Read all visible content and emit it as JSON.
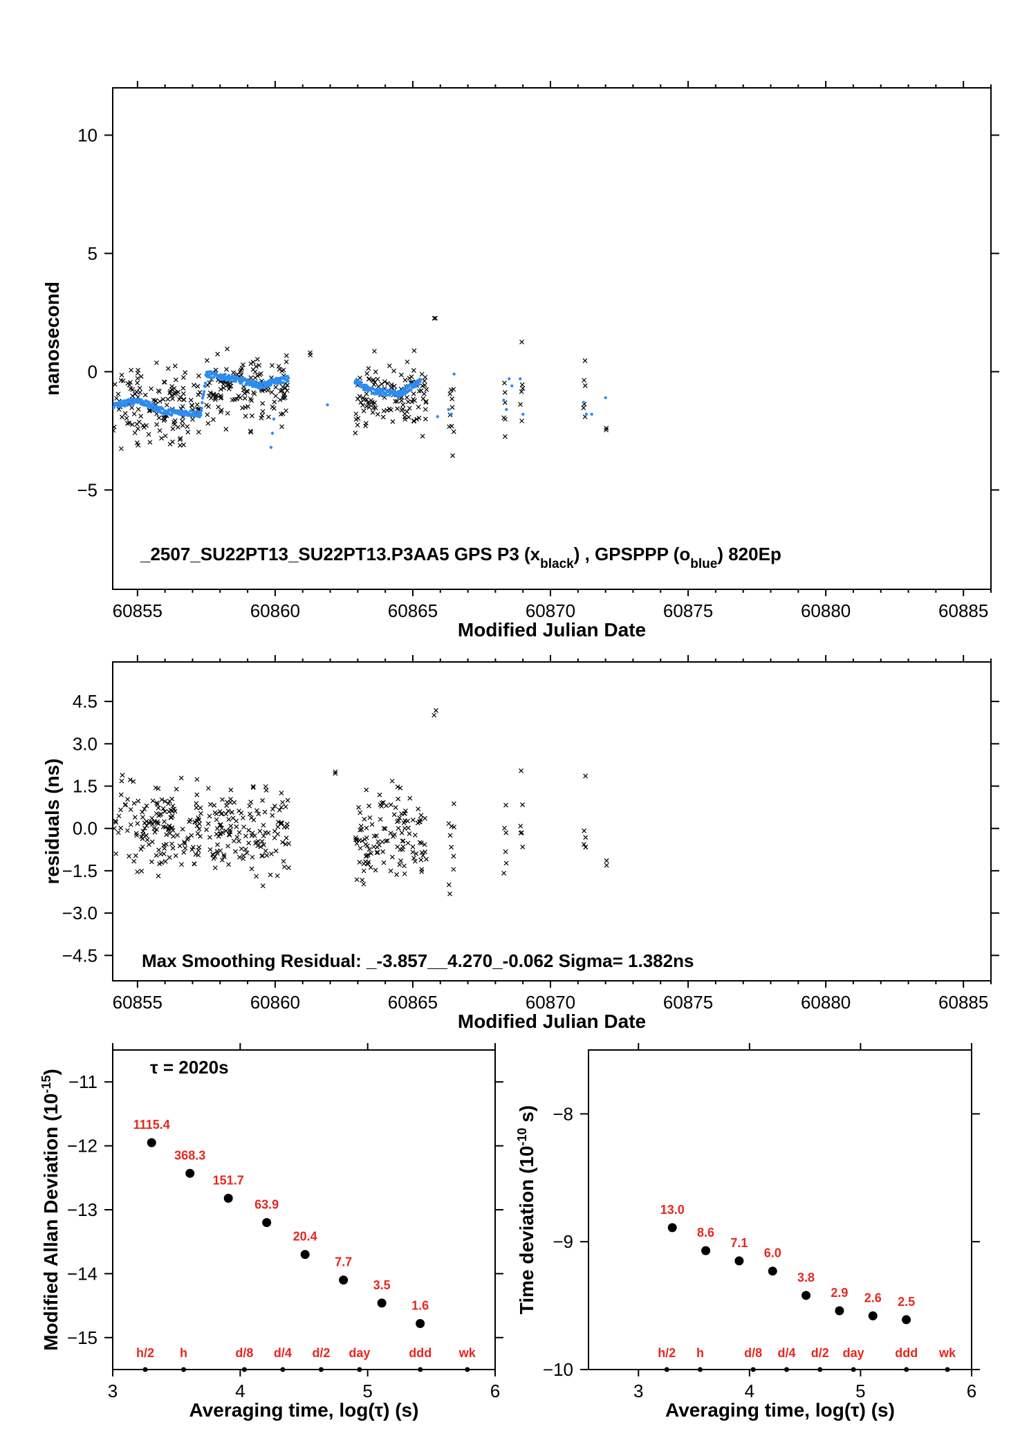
{
  "chart_data": [
    {
      "type": "scatter",
      "id": "top",
      "xlabel": "Modified Julian Date",
      "ylabel": "nanosecond",
      "xlim": [
        60854.1,
        60886.0
      ],
      "ylim": [
        -9.2,
        12.0
      ],
      "xticks": [
        60855,
        60860,
        60865,
        60870,
        60875,
        60880,
        60885
      ],
      "yticks": [
        -5,
        0,
        5,
        10
      ],
      "xtick_labels": [
        "60855",
        "60860",
        "60865",
        "60870",
        "60875",
        "60880",
        "60885"
      ],
      "ytick_labels": [
        "−5",
        "0",
        "5",
        "10"
      ],
      "annotation": {
        "prefix": "_2507_SU22PT13_SU22PT13.P3AA5     GPS P3 (x",
        "sub1": "black",
        "mid": ") ,  GPSPPP (o",
        "sub2": "blue",
        "suffix": ")  820Ep"
      },
      "series": [
        {
          "marker": "x",
          "color": "#000000",
          "segments": [
            [
              60854.1,
              60857.3,
              -1.5,
              1.3
            ],
            [
              60857.5,
              60860.5,
              -0.7,
              1.2
            ],
            [
              60861.3,
              60861.3,
              0.8,
              0.2
            ],
            [
              60862.9,
              60865.5,
              -1.0,
              1.3
            ],
            [
              60865.8,
              60865.8,
              2.2,
              0.2
            ],
            [
              60866.3,
              60866.5,
              -1.5,
              1.6
            ],
            [
              60868.3,
              60868.4,
              -1.3,
              1.3
            ],
            [
              60868.9,
              60869.0,
              -0.6,
              1.6
            ],
            [
              60871.2,
              60871.3,
              -1.5,
              1.4
            ],
            [
              60872.0,
              60872.0,
              -2.4,
              0.1
            ]
          ]
        },
        {
          "marker": "o",
          "color": "#2e8cf0",
          "trend": [
            [
              60854.1,
              -1.45
            ],
            [
              60855.0,
              -1.2
            ],
            [
              60856.0,
              -1.7
            ],
            [
              60857.0,
              -1.75
            ],
            [
              60857.3,
              -1.8
            ],
            [
              60857.5,
              -0.1
            ],
            [
              60858.5,
              -0.3
            ],
            [
              60859.5,
              -0.6
            ],
            [
              60860.0,
              -0.4
            ],
            [
              60860.5,
              -0.3
            ],
            [
              60862.9,
              -0.4
            ],
            [
              60863.5,
              -0.8
            ],
            [
              60864.5,
              -0.95
            ],
            [
              60865.3,
              -0.4
            ]
          ],
          "points": [
            [
              60859.85,
              -3.2
            ],
            [
              60859.9,
              -2.6
            ],
            [
              60859.95,
              -2.0
            ],
            [
              60861.9,
              -1.4
            ],
            [
              60865.9,
              -1.9
            ],
            [
              60866.3,
              -1.6
            ],
            [
              60866.4,
              -1.8
            ],
            [
              60866.5,
              -0.1
            ],
            [
              60868.3,
              -1.2
            ],
            [
              60868.4,
              -1.6
            ],
            [
              60868.5,
              -0.3
            ],
            [
              60868.6,
              -0.6
            ],
            [
              60868.9,
              -0.3
            ],
            [
              60869.0,
              -1.8
            ],
            [
              60871.2,
              -1.3
            ],
            [
              60871.3,
              -1.8
            ],
            [
              60871.5,
              -1.8
            ],
            [
              60872.0,
              -1.1
            ]
          ]
        }
      ]
    },
    {
      "type": "scatter",
      "id": "middle",
      "xlabel": "Modified Julian Date",
      "ylabel": "residuals (ns)",
      "xlim": [
        60854.1,
        60886.0
      ],
      "ylim": [
        -5.4,
        5.9
      ],
      "xticks": [
        60855,
        60860,
        60865,
        60870,
        60875,
        60880,
        60885
      ],
      "yticks": [
        -4.5,
        -3.0,
        -1.5,
        0.0,
        1.5,
        3.0,
        4.5
      ],
      "xtick_labels": [
        "60855",
        "60860",
        "60865",
        "60870",
        "60875",
        "60880",
        "60885"
      ],
      "ytick_labels": [
        "−4.5",
        "−3.0",
        "−1.5",
        "0.0",
        "1.5",
        "3.0",
        "4.5"
      ],
      "annotation": "Max Smoothing Residual: _-3.857__4.270_-0.062  Sigma= 1.382ns",
      "series": [
        {
          "marker": "x",
          "color": "#000000",
          "segments": [
            [
              60854.1,
              60857.3,
              0.0,
              1.3
            ],
            [
              60857.5,
              60860.5,
              -0.1,
              1.2
            ],
            [
              60862.2,
              60862.2,
              2.0,
              0.1
            ],
            [
              60862.9,
              60865.5,
              -0.3,
              1.3
            ],
            [
              60865.8,
              60865.8,
              4.1,
              0.2
            ],
            [
              60866.3,
              60866.5,
              -0.2,
              1.5
            ],
            [
              60868.3,
              60868.4,
              0.0,
              1.4
            ],
            [
              60868.9,
              60869.0,
              0.3,
              1.4
            ],
            [
              60871.2,
              60871.3,
              -0.2,
              1.3
            ],
            [
              60872.0,
              60872.0,
              -1.25,
              0.1
            ]
          ]
        }
      ]
    },
    {
      "type": "scatter",
      "id": "bottom-left",
      "xlabel": "Averaging time, log(τ) (s)",
      "ylabel": "Modified Allan Deviation (10",
      "ylabel_sup": "-15",
      "ylabel_close": ")",
      "tau": "τ = 2020s",
      "xlim": [
        3,
        6
      ],
      "ylim": [
        -15.5,
        -10.5
      ],
      "xticks": [
        3,
        4,
        5,
        6
      ],
      "yticks": [
        -11,
        -12,
        -13,
        -14,
        -15
      ],
      "xtick_labels": [
        "3",
        "4",
        "5",
        "6"
      ],
      "ytick_labels": [
        "−11",
        "−12",
        "−13",
        "−14",
        "−15"
      ],
      "x": [
        3.305,
        3.606,
        3.907,
        4.208,
        4.509,
        4.81,
        5.111,
        5.412
      ],
      "y": [
        -11.95,
        -12.43,
        -12.82,
        -13.2,
        -13.7,
        -14.1,
        -14.46,
        -14.78
      ],
      "labels": [
        "1115.4",
        "368.3",
        "151.7",
        "63.9",
        "20.4",
        "7.7",
        "3.5",
        "1.6"
      ],
      "markers_x": [
        3.255,
        3.556,
        4.033,
        4.334,
        4.635,
        4.936,
        5.413,
        5.782
      ],
      "markers_labels": [
        "h/2",
        "h",
        "d/8",
        "d/4",
        "d/2",
        "day",
        "ddd",
        "wk"
      ]
    },
    {
      "type": "scatter",
      "id": "bottom-right",
      "xlabel": "Averaging time, log(τ) (s)",
      "ylabel": "Time deviation (10",
      "ylabel_sup": "-10",
      "ylabel_close": " s)",
      "xlim": [
        2.55,
        6.0
      ],
      "ylim": [
        -10.0,
        -7.5
      ],
      "xticks": [
        3,
        4,
        5,
        6
      ],
      "yticks": [
        -8,
        -9,
        -10
      ],
      "xtick_labels": [
        "3",
        "4",
        "5",
        "6"
      ],
      "ytick_labels": [
        "−8",
        "−9",
        "−10"
      ],
      "x": [
        3.305,
        3.606,
        3.907,
        4.208,
        4.509,
        4.81,
        5.111,
        5.412
      ],
      "y": [
        -8.89,
        -9.07,
        -9.15,
        -9.23,
        -9.42,
        -9.54,
        -9.58,
        -9.61
      ],
      "labels": [
        "13.0",
        "8.6",
        "7.1",
        "6.0",
        "3.8",
        "2.9",
        "2.6",
        "2.5"
      ],
      "markers_x": [
        3.255,
        3.556,
        4.033,
        4.334,
        4.635,
        4.936,
        5.413,
        5.782
      ],
      "markers_labels": [
        "h/2",
        "h",
        "d/8",
        "d/4",
        "d/2",
        "day",
        "ddd",
        "wk"
      ]
    }
  ]
}
